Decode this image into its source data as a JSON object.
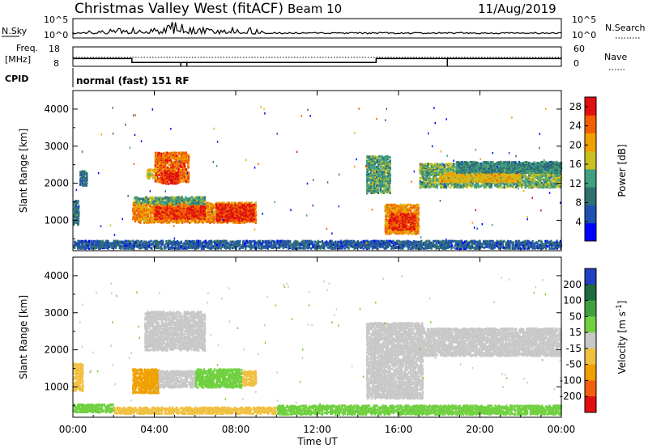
{
  "header": {
    "title": "Christmas Valley West (fitACF)",
    "beam": "Beam 10",
    "date": "11/Aug/2019"
  },
  "top_panels": {
    "nsky_label": "N.Sky",
    "nsky_ticks": [
      "10^5",
      "10^0"
    ],
    "nsearch_label": "N.Search",
    "nsearch_ticks": [
      "10^5",
      "10^0"
    ],
    "freq_label_1": "Freq.",
    "freq_label_2": "[MHz]",
    "freq_ticks": [
      "18",
      "8"
    ],
    "nave_label": "Nave",
    "nave_ticks": [
      "60",
      "0"
    ],
    "cpid_label": "CPID",
    "cpid_text": "normal (fast) 151 RF"
  },
  "chart_data": [
    {
      "type": "heatmap",
      "name": "power",
      "ylabel": "Slant Range [km]",
      "yticks": [
        "1000",
        "2000",
        "3000",
        "4000"
      ],
      "ytick_values": [
        1000,
        2000,
        3000,
        4000
      ],
      "ylim": [
        180,
        4500
      ],
      "xticks": [
        "00:00",
        "04:00",
        "08:00",
        "12:00",
        "16:00",
        "20:00",
        "00:00"
      ],
      "xlim_hours": [
        0,
        24
      ],
      "colorbar": {
        "label": "Power [dB]",
        "ticks": [
          "4",
          "8",
          "12",
          "16",
          "20",
          "24",
          "28"
        ],
        "tick_values": [
          4,
          8,
          12,
          16,
          20,
          24,
          28
        ],
        "range": [
          0,
          30
        ],
        "colors": [
          "#0000ff",
          "#2050b0",
          "#307070",
          "#40a080",
          "#c8c020",
          "#f0a000",
          "#f06000",
          "#e01010"
        ]
      },
      "regions": [
        {
          "t0": 0.0,
          "t1": 0.3,
          "r0": 850,
          "r1": 1500,
          "value": 9
        },
        {
          "t0": 0.3,
          "t1": 0.7,
          "r0": 1900,
          "r1": 2300,
          "value": 8
        },
        {
          "t0": 2.9,
          "t1": 9.0,
          "r0": 900,
          "r1": 1450,
          "value": 22
        },
        {
          "t0": 4.0,
          "t1": 6.5,
          "r0": 1000,
          "r1": 1350,
          "value": 27
        },
        {
          "t0": 7.0,
          "t1": 8.9,
          "r0": 950,
          "r1": 1400,
          "value": 27
        },
        {
          "t0": 3.0,
          "t1": 6.5,
          "r0": 1400,
          "r1": 1600,
          "value": 13
        },
        {
          "t0": 4.0,
          "t1": 5.7,
          "r0": 2000,
          "r1": 2800,
          "value": 24
        },
        {
          "t0": 4.3,
          "t1": 5.2,
          "r0": 1950,
          "r1": 2300,
          "value": 28
        },
        {
          "t0": 3.6,
          "t1": 4.1,
          "r0": 2100,
          "r1": 2350,
          "value": 18
        },
        {
          "t0": 14.4,
          "t1": 15.6,
          "r0": 1700,
          "r1": 2700,
          "value": 13
        },
        {
          "t0": 15.3,
          "t1": 17.0,
          "r0": 600,
          "r1": 1400,
          "value": 22
        },
        {
          "t0": 15.5,
          "t1": 16.8,
          "r0": 700,
          "r1": 1150,
          "value": 27
        },
        {
          "t0": 17.0,
          "t1": 24.0,
          "r0": 1850,
          "r1": 2500,
          "value": 14
        },
        {
          "t0": 18.0,
          "t1": 22.0,
          "r0": 2000,
          "r1": 2250,
          "value": 19
        },
        {
          "t0": 18.8,
          "t1": 24.0,
          "r0": 2250,
          "r1": 2550,
          "value": 11
        },
        {
          "t0": 0.0,
          "t1": 24.0,
          "r0": 200,
          "r1": 420,
          "value": 7
        }
      ]
    },
    {
      "type": "heatmap",
      "name": "velocity",
      "ylabel": "Slant Range [km]",
      "yticks": [
        "1000",
        "2000",
        "3000",
        "4000"
      ],
      "ytick_values": [
        1000,
        2000,
        3000,
        4000
      ],
      "ylim": [
        180,
        4500
      ],
      "xticks": [
        "00:00",
        "04:00",
        "08:00",
        "12:00",
        "16:00",
        "20:00",
        "00:00"
      ],
      "xlim_hours": [
        0,
        24
      ],
      "xlabel": "Time UT",
      "colorbar": {
        "label": "Velocity [m s^-1]",
        "ticks": [
          "200",
          "100",
          "50",
          "15",
          "-15",
          "-50",
          "-100",
          "-200"
        ],
        "tick_values": [
          200,
          100,
          50,
          15,
          -15,
          -50,
          -100,
          -200
        ],
        "colors": [
          "#2040c0",
          "#206a40",
          "#40a040",
          "#70d040",
          "#c8c8c8",
          "#f0c040",
          "#f0a000",
          "#f06010",
          "#e01010"
        ]
      },
      "regions": [
        {
          "t0": 0.0,
          "t1": 0.5,
          "r0": 850,
          "r1": 1600,
          "value": -20
        },
        {
          "t0": 2.9,
          "t1": 4.2,
          "r0": 800,
          "r1": 1450,
          "value": -60
        },
        {
          "t0": 4.2,
          "t1": 6.0,
          "r0": 950,
          "r1": 1400,
          "value": 0
        },
        {
          "t0": 6.0,
          "t1": 8.3,
          "r0": 950,
          "r1": 1450,
          "value": 30
        },
        {
          "t0": 8.3,
          "t1": 9.0,
          "r0": 1000,
          "r1": 1400,
          "value": -40
        },
        {
          "t0": 3.5,
          "t1": 6.5,
          "r0": 1950,
          "r1": 3000,
          "value": 0
        },
        {
          "t0": 14.4,
          "t1": 17.2,
          "r0": 650,
          "r1": 2700,
          "value": 0
        },
        {
          "t0": 17.0,
          "t1": 24.0,
          "r0": 1800,
          "r1": 2550,
          "value": 0
        },
        {
          "t0": 0.0,
          "t1": 2.0,
          "r0": 280,
          "r1": 500,
          "value": 30
        },
        {
          "t0": 2.0,
          "t1": 10.0,
          "r0": 240,
          "r1": 420,
          "value": -40
        },
        {
          "t0": 10.0,
          "t1": 24.0,
          "r0": 220,
          "r1": 470,
          "value": 30
        }
      ]
    }
  ],
  "colors": {
    "frame": "#000000",
    "background": "#ffffff"
  }
}
